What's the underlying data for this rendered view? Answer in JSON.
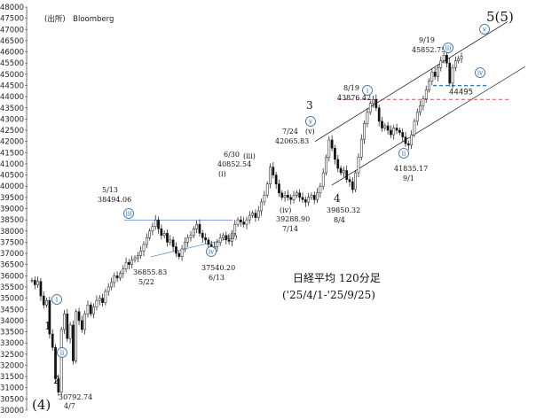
{
  "chart_data": {
    "type": "candlestick",
    "source": "(出所)　Bloomberg",
    "title": "日経平均 120分足",
    "subtitle": "('25/4/1-'25/9/25)",
    "ylim": [
      30000,
      48000
    ],
    "yticks": [
      30000,
      30500,
      31000,
      31500,
      32000,
      32500,
      33000,
      33500,
      34000,
      34500,
      35000,
      35500,
      36000,
      36500,
      37000,
      37500,
      38000,
      38500,
      39000,
      39500,
      40000,
      40500,
      41000,
      41500,
      42000,
      42500,
      43000,
      43500,
      44000,
      44500,
      45000,
      45500,
      46000,
      46500,
      47000,
      47500,
      48000
    ],
    "price_path": [
      [
        0,
        35800
      ],
      [
        1,
        35600
      ],
      [
        2,
        35750
      ],
      [
        3,
        35100
      ],
      [
        4,
        34700
      ],
      [
        5,
        34900
      ],
      [
        6,
        33400
      ],
      [
        7,
        32800
      ],
      [
        8,
        31400
      ],
      [
        9,
        30800
      ],
      [
        10,
        33600
      ],
      [
        11,
        34300
      ],
      [
        12,
        33200
      ],
      [
        13,
        33800
      ],
      [
        14,
        32200
      ],
      [
        15,
        34400
      ],
      [
        16,
        34000
      ],
      [
        17,
        33600
      ],
      [
        18,
        34300
      ],
      [
        19,
        34700
      ],
      [
        20,
        34300
      ],
      [
        21,
        34600
      ],
      [
        22,
        34900
      ],
      [
        23,
        35000
      ],
      [
        24,
        34800
      ],
      [
        25,
        35300
      ],
      [
        26,
        35500
      ],
      [
        27,
        35700
      ],
      [
        28,
        36000
      ],
      [
        29,
        35900
      ],
      [
        30,
        36100
      ],
      [
        31,
        36300
      ],
      [
        32,
        36600
      ],
      [
        33,
        36500
      ],
      [
        34,
        36700
      ],
      [
        35,
        36800
      ],
      [
        36,
        36900
      ],
      [
        37,
        37100
      ],
      [
        38,
        37400
      ],
      [
        39,
        37700
      ],
      [
        40,
        38000
      ],
      [
        41,
        38200
      ],
      [
        42,
        38494.06
      ],
      [
        43,
        38100
      ],
      [
        44,
        37800
      ],
      [
        45,
        37900
      ],
      [
        46,
        37500
      ],
      [
        47,
        37600
      ],
      [
        48,
        37300
      ],
      [
        49,
        37000
      ],
      [
        50,
        36855.83
      ],
      [
        51,
        37200
      ],
      [
        52,
        37500
      ],
      [
        53,
        37700
      ],
      [
        54,
        37800
      ],
      [
        55,
        38100
      ],
      [
        56,
        38300
      ],
      [
        57,
        37900
      ],
      [
        58,
        37700
      ],
      [
        59,
        37600
      ],
      [
        60,
        37400
      ],
      [
        61,
        37200
      ],
      [
        62,
        37300
      ],
      [
        63,
        37500
      ],
      [
        64,
        37700
      ],
      [
        65,
        37800
      ],
      [
        66,
        37600
      ],
      [
        67,
        37540.2
      ],
      [
        68,
        37900
      ],
      [
        69,
        38300
      ],
      [
        70,
        38500
      ],
      [
        71,
        38400
      ],
      [
        72,
        38300
      ],
      [
        73,
        38500
      ],
      [
        74,
        38700
      ],
      [
        75,
        38800
      ],
      [
        76,
        38600
      ],
      [
        77,
        38900
      ],
      [
        78,
        39300
      ],
      [
        79,
        39600
      ],
      [
        80,
        40100
      ],
      [
        81,
        40852.54
      ],
      [
        82,
        40500
      ],
      [
        83,
        40100
      ],
      [
        84,
        39700
      ],
      [
        85,
        39500
      ],
      [
        86,
        39600
      ],
      [
        87,
        39500
      ],
      [
        88,
        39400
      ],
      [
        89,
        39600
      ],
      [
        90,
        39700
      ],
      [
        91,
        39500
      ],
      [
        92,
        39400
      ],
      [
        93,
        39288.9
      ],
      [
        94,
        39500
      ],
      [
        95,
        39600
      ],
      [
        96,
        39400
      ],
      [
        97,
        39700
      ],
      [
        98,
        40000
      ],
      [
        99,
        40600
      ],
      [
        100,
        41300
      ],
      [
        101,
        42065.83
      ],
      [
        102,
        41700
      ],
      [
        103,
        41200
      ],
      [
        104,
        40800
      ],
      [
        105,
        40600
      ],
      [
        106,
        40700
      ],
      [
        107,
        40300
      ],
      [
        108,
        40200
      ],
      [
        109,
        39850.32
      ],
      [
        110,
        40600
      ],
      [
        111,
        41300
      ],
      [
        112,
        42100
      ],
      [
        113,
        42800
      ],
      [
        114,
        43300
      ],
      [
        115,
        43700
      ],
      [
        116,
        43876.42
      ],
      [
        117,
        43500
      ],
      [
        118,
        42900
      ],
      [
        119,
        42600
      ],
      [
        120,
        42700
      ],
      [
        121,
        42500
      ],
      [
        122,
        42300
      ],
      [
        123,
        42600
      ],
      [
        124,
        42500
      ],
      [
        125,
        42400
      ],
      [
        126,
        42200
      ],
      [
        127,
        41900
      ],
      [
        128,
        41835.17
      ],
      [
        129,
        42300
      ],
      [
        130,
        42900
      ],
      [
        131,
        43300
      ],
      [
        132,
        43600
      ],
      [
        133,
        43900
      ],
      [
        134,
        44300
      ],
      [
        135,
        44700
      ],
      [
        136,
        45100
      ],
      [
        137,
        44900
      ],
      [
        138,
        45300
      ],
      [
        139,
        45600
      ],
      [
        140,
        45852.75
      ],
      [
        141,
        45500
      ],
      [
        142,
        44600
      ],
      [
        143,
        45300
      ],
      [
        144,
        45600
      ],
      [
        145,
        45700
      ],
      [
        146,
        45800
      ]
    ],
    "price_labels": [
      {
        "text": "5/13",
        "value": "38494.06"
      },
      {
        "text": "36855.83",
        "date": "5/22"
      },
      {
        "text": "37540.20",
        "date": "6/13"
      },
      {
        "text": "6/30",
        "value": "40852.54"
      },
      {
        "text": "39288.90",
        "date": "7/14"
      },
      {
        "text": "7/24",
        "value": "42065.83"
      },
      {
        "text": "39850.32",
        "date": "8/4"
      },
      {
        "text": "8/19",
        "value": "43876.42"
      },
      {
        "text": "41835.17",
        "date": "9/1"
      },
      {
        "text": "9/19",
        "value": "45852.75"
      },
      {
        "text": "30792.74",
        "date": "4/7"
      }
    ],
    "levels": [
      {
        "value": 43876.42,
        "color": "#d9534f",
        "style": "dashed"
      },
      {
        "value": 44495,
        "color": "#1f7fc4",
        "style": "dashed",
        "label": "44495"
      }
    ],
    "wave_labels": {
      "primary": [
        "1",
        "2",
        "3",
        "4",
        "5(5)",
        "(4)"
      ],
      "minor": [
        "(i)",
        "(ii)",
        "(iii)",
        "(iv)",
        "(v)"
      ],
      "circled": [
        "i",
        "ii",
        "iii",
        "iv",
        "v"
      ]
    }
  }
}
